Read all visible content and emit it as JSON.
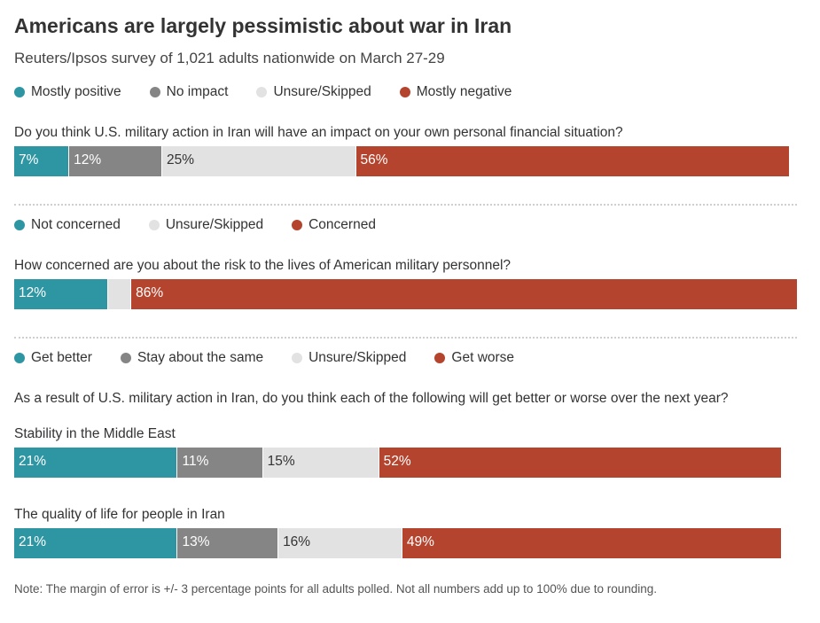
{
  "title": "Americans are largely pessimistic about war in Iran",
  "subtitle": "Reuters/Ipsos survey of 1,021 adults nationwide on March 27-29",
  "note": "Note:  The margin of error is +/- 3 percentage points for all adults polled. Not all numbers add up to 100% due to rounding.",
  "colors": {
    "teal": "#2e96a3",
    "gray": "#858585",
    "light": "#e2e2e2",
    "red": "#b5442e"
  },
  "chart_data": [
    {
      "type": "bar",
      "stacked": true,
      "orientation": "horizontal",
      "legend": [
        {
          "label": "Mostly positive",
          "color": "#2e96a3"
        },
        {
          "label": "No impact",
          "color": "#858585"
        },
        {
          "label": "Unsure/Skipped",
          "color": "#e2e2e2"
        },
        {
          "label": "Mostly negative",
          "color": "#b5442e"
        }
      ],
      "question": "Do you think U.S. military action in Iran will have an impact on your own personal financial situation?",
      "rows": [
        {
          "label": "",
          "values": [
            7,
            12,
            25,
            56
          ],
          "labels": [
            "7%",
            "12%",
            "25%",
            "56%"
          ]
        }
      ]
    },
    {
      "type": "bar",
      "stacked": true,
      "orientation": "horizontal",
      "legend": [
        {
          "label": "Not concerned",
          "color": "#2e96a3"
        },
        {
          "label": "Unsure/Skipped",
          "color": "#e2e2e2"
        },
        {
          "label": "Concerned",
          "color": "#b5442e"
        }
      ],
      "question": "How concerned are you about the risk to the lives of American military personnel?",
      "rows": [
        {
          "label": "",
          "values": [
            12,
            3,
            86
          ],
          "labels": [
            "12%",
            "",
            "86%"
          ]
        }
      ]
    },
    {
      "type": "bar",
      "stacked": true,
      "orientation": "horizontal",
      "legend": [
        {
          "label": "Get better",
          "color": "#2e96a3"
        },
        {
          "label": "Stay about the same",
          "color": "#858585"
        },
        {
          "label": "Unsure/Skipped",
          "color": "#e2e2e2"
        },
        {
          "label": "Get worse",
          "color": "#b5442e"
        }
      ],
      "question": "As a result of U.S. military action in Iran, do you think each of the following will get better or worse over the next year?",
      "rows": [
        {
          "label": "Stability in the Middle East",
          "values": [
            21,
            11,
            15,
            52
          ],
          "labels": [
            "21%",
            "11%",
            "15%",
            "52%"
          ]
        },
        {
          "label": "The quality of life for people in Iran",
          "values": [
            21,
            13,
            16,
            49
          ],
          "labels": [
            "21%",
            "13%",
            "16%",
            "49%"
          ]
        }
      ]
    }
  ]
}
